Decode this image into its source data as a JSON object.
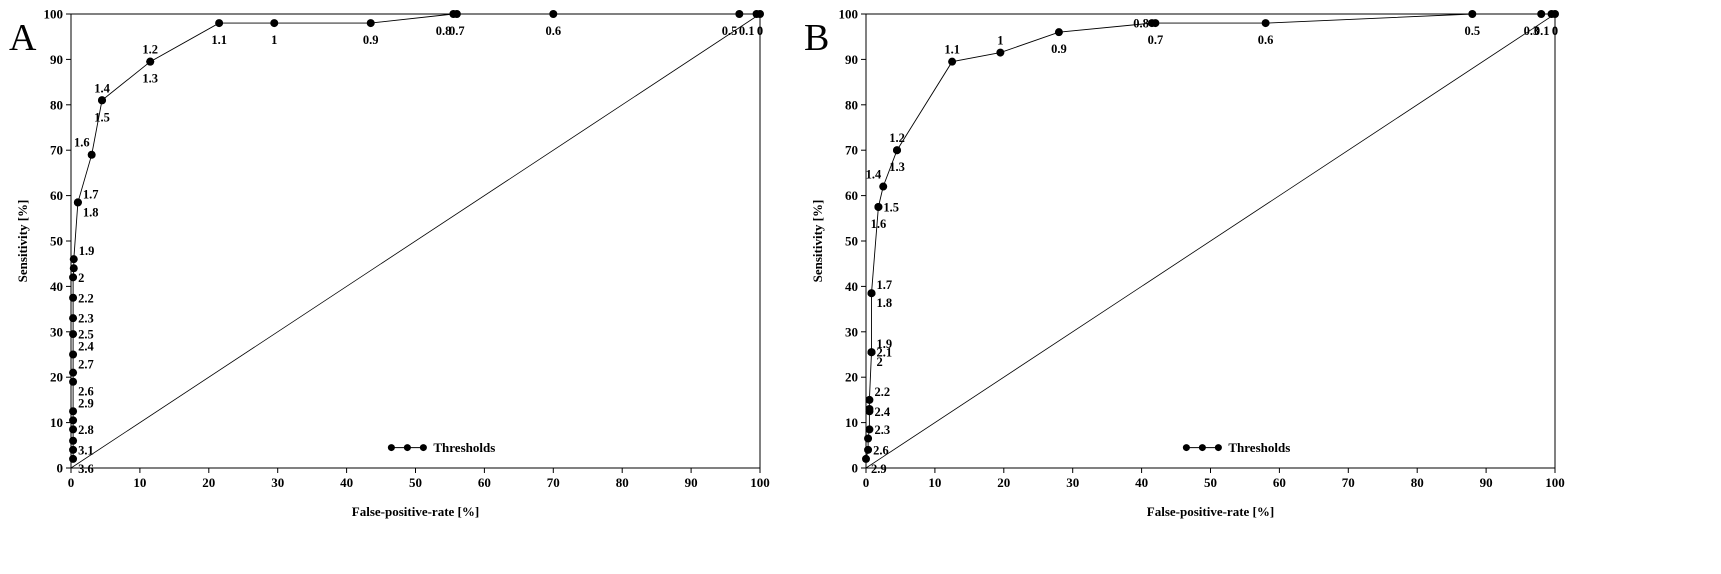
{
  "chart_data": [
    {
      "panel_letter": "A",
      "type": "line",
      "xlabel": "False-positive-rate [%]",
      "ylabel": "Sensitivity [%]",
      "xlim": [
        0,
        100
      ],
      "ylim": [
        0,
        100
      ],
      "xticks": [
        0,
        10,
        20,
        30,
        40,
        50,
        60,
        70,
        80,
        90,
        100
      ],
      "yticks": [
        0,
        10,
        20,
        30,
        40,
        50,
        60,
        70,
        80,
        90,
        100
      ],
      "legend": {
        "label": "Thresholds",
        "placement": "bottom-right"
      },
      "reference_line": {
        "from": [
          0,
          0
        ],
        "to": [
          100,
          100
        ]
      },
      "series": [
        {
          "name": "Thresholds",
          "points": [
            {
              "x": 0.3,
              "y": 2,
              "label": "3.6",
              "pos": "right-below"
            },
            {
              "x": 0.3,
              "y": 4,
              "label": "3.1",
              "pos": "right"
            },
            {
              "x": 0.3,
              "y": 6,
              "label": "",
              "pos": "right"
            },
            {
              "x": 0.3,
              "y": 8.5,
              "label": "2.8",
              "pos": "right"
            },
            {
              "x": 0.3,
              "y": 10.5,
              "label": "",
              "pos": "right"
            },
            {
              "x": 0.3,
              "y": 12.5,
              "label": "2.9",
              "pos": "right-above"
            },
            {
              "x": 0.3,
              "y": 19,
              "label": "2.6",
              "pos": "right-below"
            },
            {
              "x": 0.3,
              "y": 21,
              "label": "2.7",
              "pos": "right-above"
            },
            {
              "x": 0.3,
              "y": 25,
              "label": "2.4",
              "pos": "right-above"
            },
            {
              "x": 0.3,
              "y": 29.5,
              "label": "2.5",
              "pos": "right"
            },
            {
              "x": 0.3,
              "y": 33,
              "label": "2.3",
              "pos": "right"
            },
            {
              "x": 0.3,
              "y": 37.5,
              "label": "2.2",
              "pos": "right"
            },
            {
              "x": 0.3,
              "y": 42,
              "label": "2",
              "pos": "right"
            },
            {
              "x": 0.4,
              "y": 44,
              "label": "",
              "pos": "right"
            },
            {
              "x": 0.4,
              "y": 46,
              "label": "1.9",
              "pos": "right-above"
            },
            {
              "x": 1,
              "y": 58.5,
              "label": "1.8",
              "pos": "right-below"
            },
            {
              "x": 1,
              "y": 58.5,
              "label": "1.7",
              "pos": "right-above"
            },
            {
              "x": 3,
              "y": 69,
              "label": "1.6",
              "pos": "left-above"
            },
            {
              "x": 4.5,
              "y": 81,
              "label": "1.4",
              "pos": "above"
            },
            {
              "x": 4.5,
              "y": 81,
              "label": "1.5",
              "pos": "below"
            },
            {
              "x": 11.5,
              "y": 89.5,
              "label": "1.2",
              "pos": "above"
            },
            {
              "x": 11.5,
              "y": 89.5,
              "label": "1.3",
              "pos": "below"
            },
            {
              "x": 21.5,
              "y": 98,
              "label": "1.1",
              "pos": "below"
            },
            {
              "x": 29.5,
              "y": 98,
              "label": "1",
              "pos": "below"
            },
            {
              "x": 43.5,
              "y": 98,
              "label": "0.9",
              "pos": "below"
            },
            {
              "x": 55.5,
              "y": 100,
              "label": "0.8",
              "pos": "below-left"
            },
            {
              "x": 56,
              "y": 100,
              "label": "0.7",
              "pos": "below"
            },
            {
              "x": 70,
              "y": 100,
              "label": "0.6",
              "pos": "below"
            },
            {
              "x": 97,
              "y": 100,
              "label": "0.5",
              "pos": "below-left"
            },
            {
              "x": 99.5,
              "y": 100,
              "label": "0.1",
              "pos": "below-left"
            },
            {
              "x": 100,
              "y": 100,
              "label": "0",
              "pos": "below"
            }
          ]
        }
      ]
    },
    {
      "panel_letter": "B",
      "type": "line",
      "xlabel": "False-positive-rate [%]",
      "ylabel": "Sensitivity [%]",
      "xlim": [
        0,
        100
      ],
      "ylim": [
        0,
        100
      ],
      "xticks": [
        0,
        10,
        20,
        30,
        40,
        50,
        60,
        70,
        80,
        90,
        100
      ],
      "yticks": [
        0,
        10,
        20,
        30,
        40,
        50,
        60,
        70,
        80,
        90,
        100
      ],
      "legend": {
        "label": "Thresholds",
        "placement": "bottom-right"
      },
      "reference_line": {
        "from": [
          0,
          0
        ],
        "to": [
          100,
          100
        ]
      },
      "series": [
        {
          "name": "Thresholds",
          "points": [
            {
              "x": 0,
              "y": 2,
              "label": "2.9",
              "pos": "right-below"
            },
            {
              "x": 0.3,
              "y": 4,
              "label": "2.6",
              "pos": "right"
            },
            {
              "x": 0.3,
              "y": 6.5,
              "label": "",
              "pos": "right"
            },
            {
              "x": 0.5,
              "y": 8.5,
              "label": "2.3",
              "pos": "right"
            },
            {
              "x": 0.5,
              "y": 12.5,
              "label": "2.4",
              "pos": "right"
            },
            {
              "x": 0.5,
              "y": 13,
              "label": "",
              "pos": "right"
            },
            {
              "x": 0.5,
              "y": 15,
              "label": "2.2",
              "pos": "right-above"
            },
            {
              "x": 0.8,
              "y": 25.5,
              "label": "2.1",
              "pos": "right"
            },
            {
              "x": 0.8,
              "y": 25.5,
              "label": "2",
              "pos": "right-below"
            },
            {
              "x": 0.8,
              "y": 25.5,
              "label": "1.9",
              "pos": "right-above"
            },
            {
              "x": 0.8,
              "y": 38.5,
              "label": "1.8",
              "pos": "right-below"
            },
            {
              "x": 0.8,
              "y": 38.5,
              "label": "1.7",
              "pos": "right-above"
            },
            {
              "x": 1.8,
              "y": 57.5,
              "label": "1.6",
              "pos": "below"
            },
            {
              "x": 1.8,
              "y": 57.5,
              "label": "1.5",
              "pos": "right"
            },
            {
              "x": 2.5,
              "y": 62,
              "label": "1.4",
              "pos": "left-above"
            },
            {
              "x": 4.5,
              "y": 70,
              "label": "1.2",
              "pos": "above"
            },
            {
              "x": 4.5,
              "y": 70,
              "label": "1.3",
              "pos": "below"
            },
            {
              "x": 12.5,
              "y": 89.5,
              "label": "1.1",
              "pos": "above"
            },
            {
              "x": 19.5,
              "y": 91.5,
              "label": "1",
              "pos": "above"
            },
            {
              "x": 28,
              "y": 96,
              "label": "0.9",
              "pos": "below"
            },
            {
              "x": 41.5,
              "y": 98,
              "label": "0.8",
              "pos": "left"
            },
            {
              "x": 42,
              "y": 98,
              "label": "0.7",
              "pos": "below"
            },
            {
              "x": 58,
              "y": 98,
              "label": "0.6",
              "pos": "below"
            },
            {
              "x": 88,
              "y": 100,
              "label": "0.5",
              "pos": "below"
            },
            {
              "x": 98,
              "y": 100,
              "label": "0.3",
              "pos": "below-left"
            },
            {
              "x": 99.5,
              "y": 100,
              "label": "0.1",
              "pos": "below-left"
            },
            {
              "x": 100,
              "y": 100,
              "label": "0",
              "pos": "below"
            }
          ]
        }
      ]
    }
  ]
}
